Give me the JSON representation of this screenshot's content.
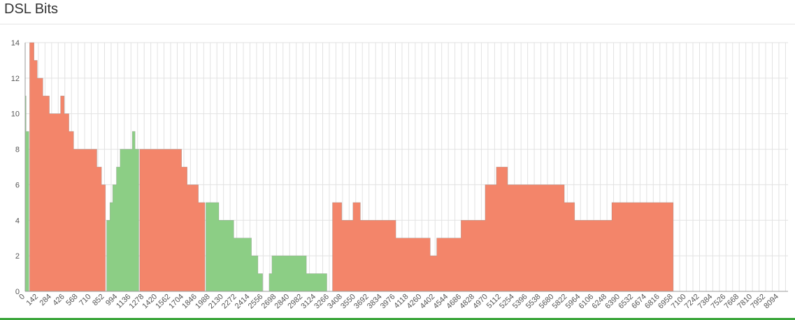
{
  "header": {
    "title": "DSL Bits"
  },
  "chart_data": {
    "type": "area",
    "title": "DSL Bits",
    "xlabel": "",
    "ylabel": "",
    "xlim": [
      0,
      8192
    ],
    "ylim": [
      0,
      14
    ],
    "grid": true,
    "x_ticks": [
      "0",
      "142",
      "284",
      "426",
      "568",
      "710",
      "852",
      "994",
      "1136",
      "1278",
      "1420",
      "1562",
      "1704",
      "1846",
      "1988",
      "2130",
      "2272",
      "2414",
      "2556",
      "2698",
      "2840",
      "2982",
      "3124",
      "3266",
      "3408",
      "3550",
      "3692",
      "3834",
      "3976",
      "4118",
      "4260",
      "4402",
      "4544",
      "4686",
      "4828",
      "4970",
      "5112",
      "5254",
      "5396",
      "5538",
      "5680",
      "5822",
      "5964",
      "6106",
      "6248",
      "6390",
      "6532",
      "6674",
      "6816",
      "6958",
      "7100",
      "7242",
      "7384",
      "7526",
      "7668",
      "7810",
      "7952",
      "8094"
    ],
    "y_ticks": [
      0,
      2,
      4,
      6,
      8,
      10,
      12,
      14
    ],
    "colors": {
      "downstream": "#f3856a",
      "upstream": "#8cce85",
      "noise": "#888888"
    },
    "series": [
      {
        "role": "upstream",
        "points": [
          [
            0,
            0
          ],
          [
            0,
            11
          ],
          [
            10,
            11
          ],
          [
            10,
            9
          ],
          [
            40,
            9
          ],
          [
            40,
            0
          ]
        ]
      },
      {
        "role": "downstream",
        "points": [
          [
            48,
            0
          ],
          [
            48,
            14
          ],
          [
            95,
            14
          ],
          [
            95,
            13
          ],
          [
            130,
            13
          ],
          [
            130,
            12
          ],
          [
            190,
            12
          ],
          [
            190,
            11
          ],
          [
            260,
            11
          ],
          [
            260,
            10
          ],
          [
            380,
            10
          ],
          [
            380,
            11
          ],
          [
            420,
            11
          ],
          [
            420,
            10
          ],
          [
            470,
            10
          ],
          [
            470,
            9
          ],
          [
            520,
            9
          ],
          [
            520,
            8
          ],
          [
            770,
            8
          ],
          [
            770,
            7
          ],
          [
            820,
            7
          ],
          [
            820,
            6
          ],
          [
            862,
            6
          ],
          [
            862,
            0
          ]
        ]
      },
      {
        "role": "upstream",
        "points": [
          [
            875,
            0
          ],
          [
            875,
            4
          ],
          [
            910,
            4
          ],
          [
            910,
            5
          ],
          [
            940,
            5
          ],
          [
            940,
            6
          ],
          [
            980,
            6
          ],
          [
            980,
            7
          ],
          [
            1020,
            7
          ],
          [
            1020,
            8
          ],
          [
            1150,
            8
          ],
          [
            1150,
            9
          ],
          [
            1180,
            9
          ],
          [
            1180,
            8
          ],
          [
            1220,
            8
          ],
          [
            1220,
            0
          ]
        ]
      },
      {
        "role": "downstream",
        "points": [
          [
            1230,
            0
          ],
          [
            1230,
            8
          ],
          [
            1680,
            8
          ],
          [
            1680,
            7
          ],
          [
            1740,
            7
          ],
          [
            1740,
            6
          ],
          [
            1860,
            6
          ],
          [
            1860,
            5
          ],
          [
            1930,
            5
          ],
          [
            1930,
            0
          ]
        ]
      },
      {
        "role": "upstream",
        "points": [
          [
            1940,
            0
          ],
          [
            1940,
            5
          ],
          [
            2080,
            5
          ],
          [
            2080,
            4
          ],
          [
            2240,
            4
          ],
          [
            2240,
            3
          ],
          [
            2430,
            3
          ],
          [
            2430,
            2
          ],
          [
            2500,
            2
          ],
          [
            2500,
            1
          ],
          [
            2550,
            1
          ],
          [
            2550,
            0
          ]
        ]
      },
      {
        "role": "upstream",
        "points": [
          [
            2620,
            0
          ],
          [
            2620,
            1
          ],
          [
            2650,
            1
          ],
          [
            2650,
            2
          ],
          [
            3020,
            2
          ],
          [
            3020,
            1
          ],
          [
            3240,
            1
          ],
          [
            3240,
            0
          ]
        ]
      },
      {
        "role": "downstream",
        "points": [
          [
            3300,
            0
          ],
          [
            3300,
            5
          ],
          [
            3400,
            5
          ],
          [
            3400,
            4
          ],
          [
            3520,
            4
          ],
          [
            3520,
            5
          ],
          [
            3600,
            5
          ],
          [
            3600,
            4
          ],
          [
            3980,
            4
          ],
          [
            3980,
            3
          ],
          [
            4350,
            3
          ],
          [
            4350,
            2
          ],
          [
            4420,
            2
          ],
          [
            4420,
            3
          ],
          [
            4680,
            3
          ],
          [
            4680,
            4
          ],
          [
            4940,
            4
          ],
          [
            4940,
            6
          ],
          [
            5060,
            6
          ],
          [
            5060,
            7
          ],
          [
            5180,
            7
          ],
          [
            5180,
            6
          ],
          [
            5790,
            6
          ],
          [
            5790,
            5
          ],
          [
            5900,
            5
          ],
          [
            5900,
            4
          ],
          [
            6300,
            4
          ],
          [
            6300,
            5
          ],
          [
            6960,
            5
          ],
          [
            6960,
            0
          ]
        ]
      }
    ]
  }
}
